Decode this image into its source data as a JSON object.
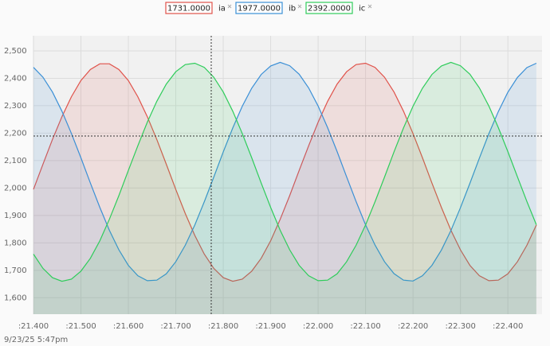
{
  "chart_data": {
    "type": "line",
    "area": true,
    "grid": true,
    "footer": "9/23/25 5:47pm",
    "x": [
      21.4,
      21.42,
      21.44,
      21.46,
      21.48,
      21.5,
      21.52,
      21.54,
      21.56,
      21.58,
      21.6,
      21.62,
      21.64,
      21.66,
      21.68,
      21.7,
      21.72,
      21.74,
      21.76,
      21.78,
      21.8,
      21.82,
      21.84,
      21.86,
      21.88,
      21.9,
      21.92,
      21.94,
      21.96,
      21.98,
      22.0,
      22.02,
      22.04,
      22.06,
      22.08,
      22.1,
      22.12,
      22.14,
      22.16,
      22.18,
      22.2,
      22.22,
      22.24,
      22.26,
      22.28,
      22.3,
      22.32,
      22.34,
      22.36,
      22.38,
      22.4,
      22.42,
      22.44,
      22.46
    ],
    "series": [
      {
        "name": "ia",
        "readout": "1731.0000",
        "color": "#e0524a",
        "values": [
          1995,
          2087,
          2177,
          2260,
          2333,
          2392,
          2432,
          2453,
          2453,
          2432,
          2392,
          2333,
          2260,
          2177,
          2087,
          1995,
          1907,
          1827,
          1759,
          1707,
          1673,
          1660,
          1668,
          1697,
          1744,
          1808,
          1886,
          1972,
          2064,
          2154,
          2240,
          2316,
          2379,
          2424,
          2450,
          2455,
          2440,
          2404,
          2350,
          2280,
          2199,
          2110,
          2018,
          1929,
          1846,
          1775,
          1718,
          1680,
          1662,
          1664,
          1687,
          1731,
          1791,
          1865
        ]
      },
      {
        "name": "ib",
        "readout": "1977.0000",
        "color": "#3a8fd6",
        "values": [
          2440,
          2404,
          2350,
          2280,
          2199,
          2110,
          2018,
          1929,
          1846,
          1775,
          1718,
          1680,
          1662,
          1664,
          1687,
          1731,
          1791,
          1865,
          1950,
          2040,
          2132,
          2219,
          2298,
          2364,
          2414,
          2445,
          2458,
          2446,
          2415,
          2365,
          2299,
          2220,
          2133,
          2041,
          1951,
          1866,
          1792,
          1731,
          1688,
          1664,
          1661,
          1680,
          1718,
          1774,
          1845,
          1928,
          2017,
          2109,
          2198,
          2279,
          2349,
          2403,
          2439,
          2455
        ]
      },
      {
        "name": "ic",
        "readout": "2392.0000",
        "color": "#2ecc5a",
        "values": [
          1759,
          1707,
          1673,
          1660,
          1668,
          1697,
          1744,
          1808,
          1886,
          1972,
          2064,
          2154,
          2240,
          2316,
          2379,
          2424,
          2450,
          2455,
          2440,
          2404,
          2350,
          2280,
          2199,
          2110,
          2018,
          1929,
          1846,
          1775,
          1718,
          1680,
          1662,
          1664,
          1687,
          1731,
          1791,
          1865,
          1950,
          2040,
          2132,
          2219,
          2298,
          2364,
          2414,
          2445,
          2458,
          2446,
          2415,
          2365,
          2299,
          2220,
          2133,
          2041,
          1951,
          1866
        ]
      }
    ],
    "xlim": [
      21.4,
      22.472
    ],
    "xticks": [
      {
        "value": 21.4,
        "label": ":21.400"
      },
      {
        "value": 21.5,
        "label": ":21.500"
      },
      {
        "value": 21.6,
        "label": ":21.600"
      },
      {
        "value": 21.7,
        "label": ":21.700"
      },
      {
        "value": 21.8,
        "label": ":21.800"
      },
      {
        "value": 21.9,
        "label": ":21.900"
      },
      {
        "value": 22.0,
        "label": ":22.000"
      },
      {
        "value": 22.1,
        "label": ":22.100"
      },
      {
        "value": 22.2,
        "label": ":22.200"
      },
      {
        "value": 22.3,
        "label": ":22.300"
      },
      {
        "value": 22.4,
        "label": ":22.400"
      }
    ],
    "ylim": [
      1540,
      2555
    ],
    "yticks": [
      {
        "value": 1600,
        "label": "1,600"
      },
      {
        "value": 1700,
        "label": "1,700"
      },
      {
        "value": 1800,
        "label": "1,800"
      },
      {
        "value": 1900,
        "label": "1,900"
      },
      {
        "value": 2000,
        "label": "2,000"
      },
      {
        "value": 2100,
        "label": "2,100"
      },
      {
        "value": 2200,
        "label": "2,200"
      },
      {
        "value": 2300,
        "label": "2,300"
      },
      {
        "value": 2400,
        "label": "2,400"
      },
      {
        "value": 2500,
        "label": "2,500"
      }
    ]
  }
}
